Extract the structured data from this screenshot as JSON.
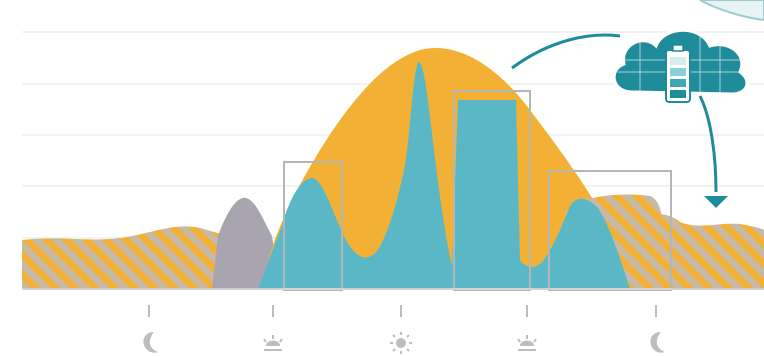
{
  "colors": {
    "background": "#ffffff",
    "grid": "#e3e3e3",
    "axis": "#d2d2d2",
    "solar": "#f2b135",
    "consumption": "#5ab8c6",
    "grid_draw": "#a9a5b0",
    "hatch_light": "#c9b9a3",
    "battery_box": "#b5b5b5",
    "arrow": "#1f8c9b",
    "cloud": "#1f8c9b",
    "icon": "#bdbdbd"
  },
  "time_markers": [
    {
      "icon": "moon-icon"
    },
    {
      "icon": "sunrise-icon"
    },
    {
      "icon": "sun-icon"
    },
    {
      "icon": "sunset-icon"
    },
    {
      "icon": "moon-icon"
    }
  ],
  "cloud_battery": {
    "icon": "cloud-battery-icon",
    "level_fraction": 0.75
  }
}
